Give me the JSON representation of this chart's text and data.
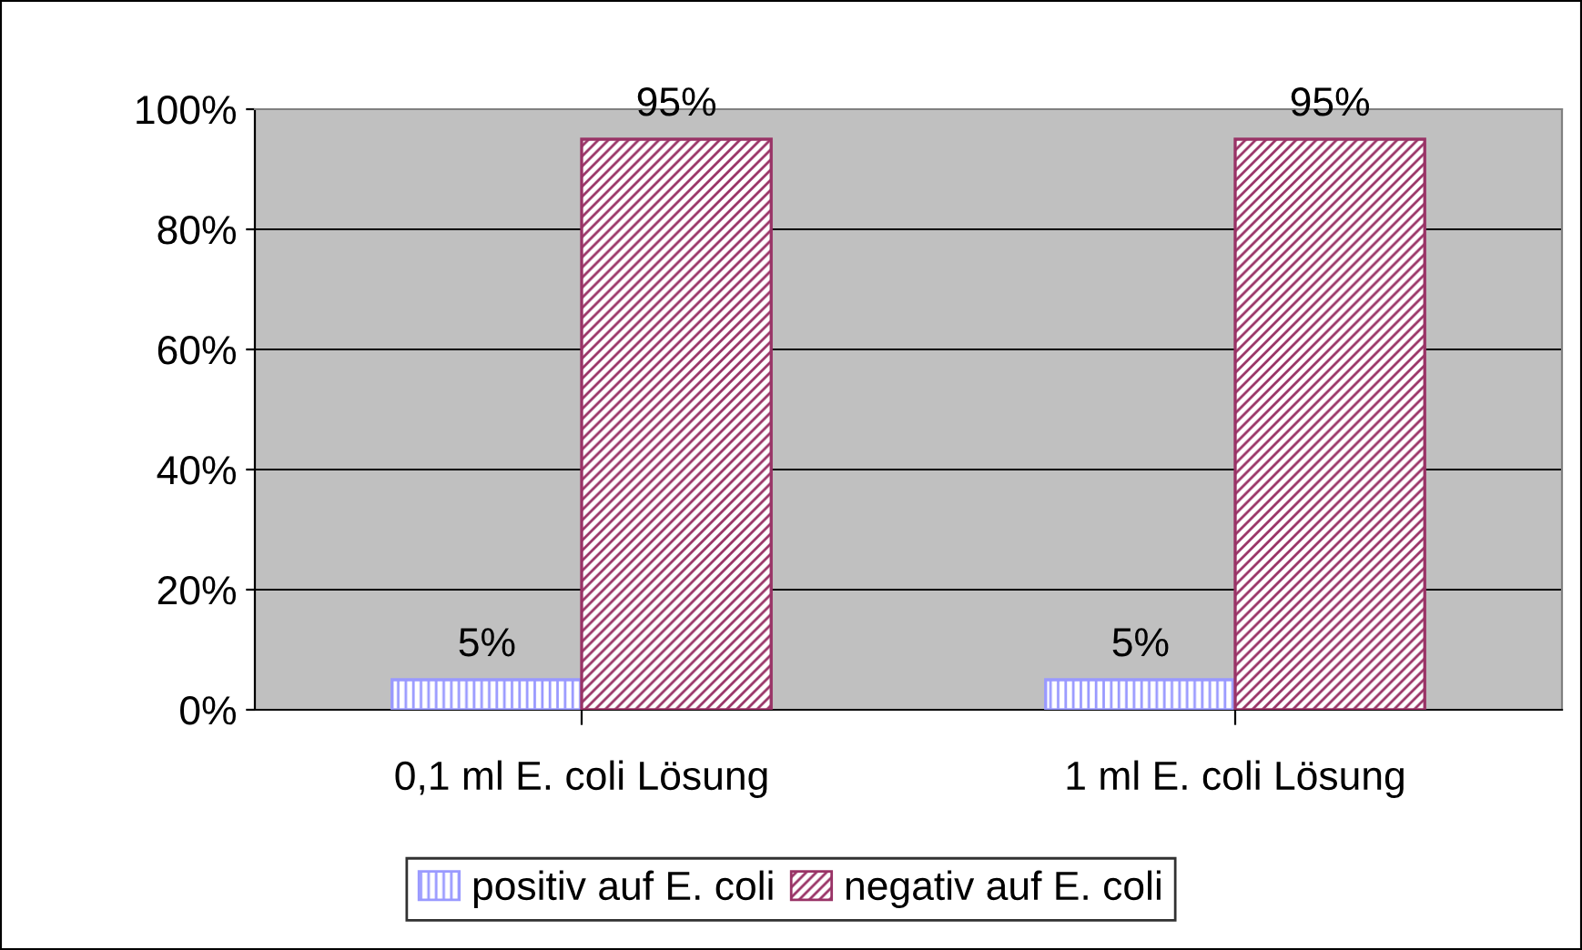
{
  "chart_data": {
    "type": "bar",
    "categories": [
      "0,1 ml E. coli Lösung",
      "1 ml E. coli Lösung"
    ],
    "series": [
      {
        "name": "positiv auf E. coli",
        "color": "#9999ff",
        "values": [
          5,
          5
        ],
        "value_labels": [
          "5%",
          "5%"
        ]
      },
      {
        "name": "negativ auf E. coli",
        "color": "#993366",
        "values": [
          95,
          95
        ],
        "value_labels": [
          "95%",
          "95%"
        ]
      }
    ],
    "ylim": [
      0,
      100
    ],
    "yticks": [
      {
        "value": 0,
        "label": "0%"
      },
      {
        "value": 20,
        "label": "20%"
      },
      {
        "value": 40,
        "label": "40%"
      },
      {
        "value": 60,
        "label": "60%"
      },
      {
        "value": 80,
        "label": "80%"
      },
      {
        "value": 100,
        "label": "100%"
      }
    ],
    "grid": "y",
    "legend": "bottom"
  }
}
